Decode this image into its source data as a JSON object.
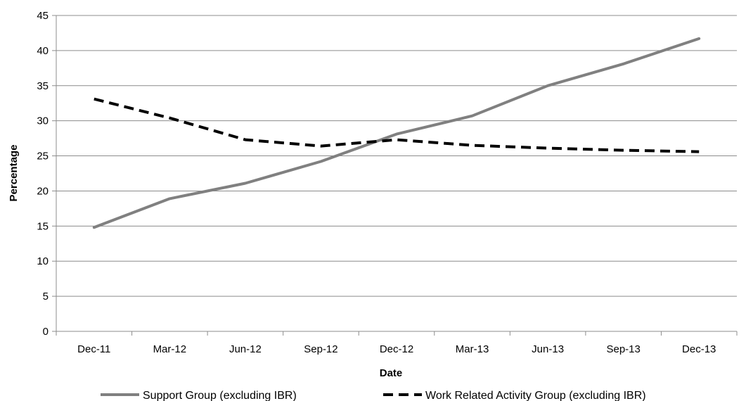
{
  "chart_data": {
    "type": "line",
    "title": "",
    "xlabel": "Date",
    "ylabel": "Percentage",
    "ylim": [
      0,
      45
    ],
    "y_ticks": [
      0,
      5,
      10,
      15,
      20,
      25,
      30,
      35,
      40,
      45
    ],
    "x_tick_labels": [
      "Dec-11",
      "Mar-12",
      "Jun-12",
      "Sep-12",
      "Dec-12",
      "Mar-13",
      "Jun-13",
      "Sep-13",
      "Dec-13"
    ],
    "grid": "horizontal",
    "legend_position": "bottom",
    "series": [
      {
        "name": "Support Group (excluding IBR)",
        "style": "solid",
        "color": "#808080",
        "points": [
          {
            "x": "Dec-11",
            "y": 14.8
          },
          {
            "x": "Mar-12",
            "y": 18.9
          },
          {
            "x": "Jun-12",
            "y": 21.1
          },
          {
            "x": "Sep-12",
            "y": 24.2
          },
          {
            "x": "Dec-12",
            "y": 28.1
          },
          {
            "x": "Mar-13",
            "y": 30.7
          },
          {
            "x": "Jun-13",
            "y": 35.0
          },
          {
            "x": "Sep-13",
            "y": 38.1
          },
          {
            "x": "Dec-13",
            "y": 41.7
          }
        ]
      },
      {
        "name": "Work Related Activity Group (excluding IBR)",
        "style": "dashed",
        "color": "#000000",
        "points": [
          {
            "x": "Dec-11",
            "y": 33.1
          },
          {
            "x": "Mar-12",
            "y": 30.4
          },
          {
            "x": "Jun-12",
            "y": 27.3
          },
          {
            "x": "Sep-12",
            "y": 26.4
          },
          {
            "x": "Dec-12",
            "y": 27.3
          },
          {
            "x": "Mar-13",
            "y": 26.5
          },
          {
            "x": "Jun-13",
            "y": 26.1
          },
          {
            "x": "Sep-13",
            "y": 25.8
          },
          {
            "x": "Dec-13",
            "y": 25.6
          }
        ]
      }
    ]
  }
}
